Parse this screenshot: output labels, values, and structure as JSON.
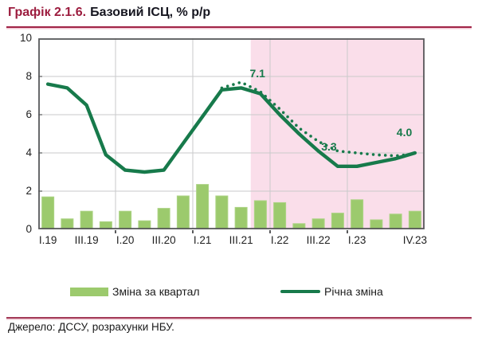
{
  "title": {
    "prefix": "Графік 2.1.6.",
    "text": "Базовий ІСЦ, % р/р"
  },
  "source": "Джерело: ДССУ, розрахунки НБУ.",
  "legend": [
    {
      "label": "Зміна за квартал",
      "swatch": "bar"
    },
    {
      "label": "Річна зміна",
      "swatch": "line"
    }
  ],
  "colors": {
    "bar_fill": "#9cca6d",
    "bar_edge": "#acd384",
    "line_green": "#177a4b",
    "forecast_pink": "#fadeea",
    "grid": "#c9cacb",
    "frame": "#58595b",
    "title_accent": "#9c1c3e"
  },
  "chart_data": {
    "type": "bar+line",
    "title": "Базовий ІСЦ, % р/р",
    "ylim": [
      0,
      10
    ],
    "y_ticks": [
      0,
      2,
      4,
      6,
      8,
      10
    ],
    "grid": true,
    "legend_position": "bottom",
    "categories": [
      "I.19",
      "II.19",
      "III.19",
      "IV.19",
      "I.20",
      "II.20",
      "III.20",
      "IV.20",
      "I.21",
      "II.21",
      "III.21",
      "IV.21",
      "I.22",
      "II.22",
      "III.22",
      "IV.22",
      "I.23",
      "II.23",
      "III.23",
      "IV.23"
    ],
    "x_ticks": [
      {
        "label": "I.19",
        "index": 0
      },
      {
        "label": "III.19",
        "index": 2
      },
      {
        "label": "I.20",
        "index": 4
      },
      {
        "label": "III.20",
        "index": 6
      },
      {
        "label": "I.21",
        "index": 8
      },
      {
        "label": "III.21",
        "index": 10
      },
      {
        "label": "I.22",
        "index": 12
      },
      {
        "label": "III.22",
        "index": 14
      },
      {
        "label": "I.23",
        "index": 16
      },
      {
        "label": "IV.23",
        "index": 19
      }
    ],
    "forecast_region": {
      "start_index": 11,
      "start_category": "IV.21",
      "color": "#fadeea"
    },
    "series": [
      {
        "name": "Зміна за квартал",
        "type": "bar",
        "values": [
          1.7,
          0.55,
          0.95,
          0.4,
          0.95,
          0.45,
          1.1,
          1.75,
          2.35,
          1.75,
          1.15,
          1.5,
          1.4,
          0.3,
          0.55,
          0.85,
          1.55,
          0.5,
          0.8,
          0.95
        ]
      },
      {
        "name": "Річна зміна",
        "type": "line",
        "values": [
          7.6,
          7.4,
          6.5,
          3.9,
          3.1,
          3.0,
          3.1,
          4.5,
          5.9,
          7.3,
          7.4,
          7.1,
          6.0,
          5.0,
          4.1,
          3.3,
          3.3,
          3.5,
          3.7,
          4.0
        ]
      },
      {
        "name": "Річна зміна (пунктир)",
        "type": "line-dotted",
        "in_legend": false,
        "values": [
          null,
          null,
          null,
          null,
          null,
          null,
          null,
          null,
          null,
          7.4,
          7.7,
          7.2,
          6.3,
          5.3,
          4.6,
          4.1,
          4.0,
          3.9,
          3.85,
          3.95
        ]
      }
    ],
    "annotations": [
      {
        "label": "7.1",
        "x_index": 10.85,
        "y_value": 8.15
      },
      {
        "label": "3.3",
        "x_index": 14.55,
        "y_value": 4.35
      },
      {
        "label": "4.0",
        "x_index": 18.45,
        "y_value": 5.1
      }
    ]
  }
}
